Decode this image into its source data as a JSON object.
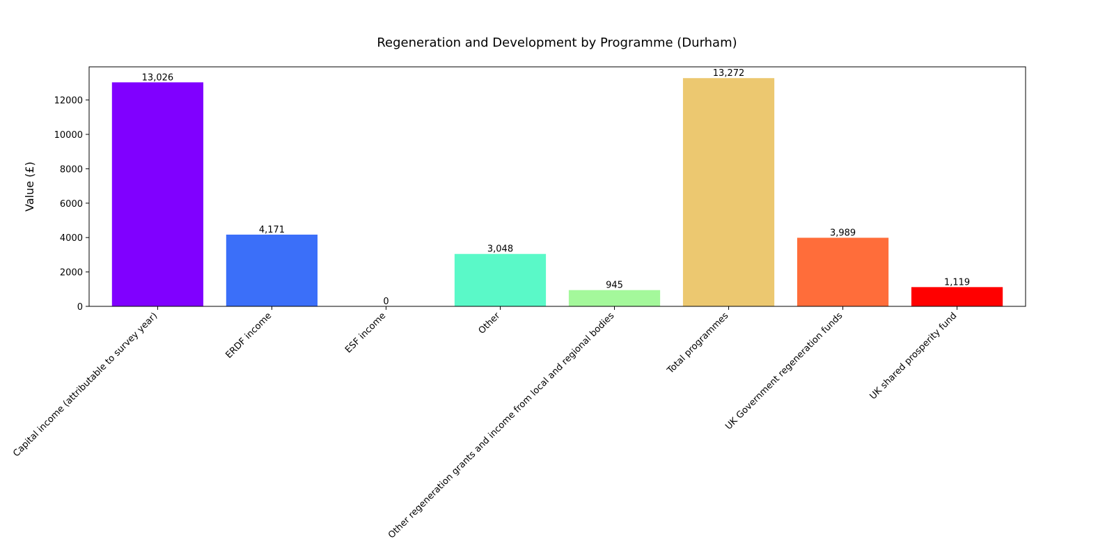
{
  "chart_data": {
    "type": "bar",
    "title": "Regeneration and Development by Programme (Durham)",
    "xlabel": "",
    "ylabel": "Value (£)",
    "ylim": [
      0,
      13928
    ],
    "yticks": [
      0,
      2000,
      4000,
      6000,
      8000,
      10000,
      12000
    ],
    "grid": false,
    "categories": [
      "Capital income (attributable to survey year)",
      "ERDF income",
      "ESF income",
      "Other",
      "Other regeneration grants and income from local and regional bodies",
      "Total programmes",
      "UK Government regeneration funds",
      "UK shared prosperity fund"
    ],
    "values": [
      13026,
      4171,
      0,
      3048,
      945,
      13272,
      3989,
      1119
    ],
    "value_labels": [
      "13,026",
      "4,171",
      "0",
      "3,048",
      "945",
      "13,272",
      "3,989",
      "1,119"
    ],
    "colors": [
      "#8000ff",
      "#3b6ff9",
      "#16c6f1",
      "#5af9c8",
      "#a4f89b",
      "#ecc870",
      "#ff6d3a",
      "#ff0000"
    ]
  }
}
